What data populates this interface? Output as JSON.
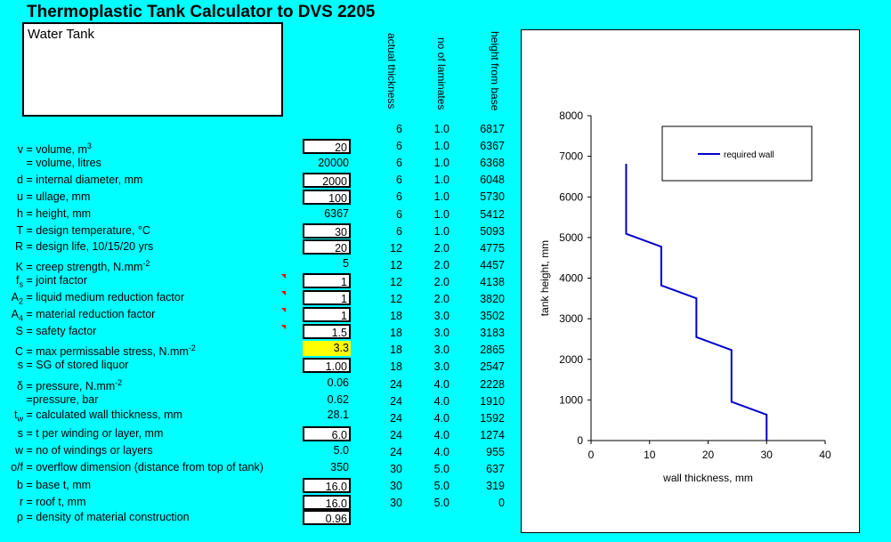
{
  "title": "Thermoplastic Tank Calculator to DVS 2205",
  "notes": "Water Tank",
  "table_headers": [
    "actual thickness",
    "no of laminates",
    "height from base"
  ],
  "rows": [
    {
      "sym": "v",
      "label": "= volume, m",
      "sup": "3",
      "value": "20",
      "style": "input",
      "top": 155
    },
    {
      "sym": "",
      "label": "= volume, litres",
      "sup": "",
      "value": "20000",
      "style": "plain",
      "top": 174
    },
    {
      "sym": "d",
      "label": "= internal diameter, mm",
      "sup": "",
      "value": "2000",
      "style": "input",
      "top": 193
    },
    {
      "sym": "u",
      "label": "= ullage, mm",
      "sup": "",
      "value": "100",
      "style": "input",
      "top": 212
    },
    {
      "sym": "h",
      "label": "= height, mm",
      "sup": "",
      "value": "6367",
      "style": "plain",
      "top": 231
    },
    {
      "sym": "T",
      "label": "= design temperature, °C",
      "sup": "",
      "value": "30",
      "style": "input",
      "top": 250
    },
    {
      "sym": "R",
      "label": "= design life, 10/15/20 yrs",
      "sup": "",
      "value": "20",
      "style": "input",
      "top": 268
    },
    {
      "sym": "K",
      "label": "= creep strength, N.mm",
      "sup": "-2",
      "value": "5",
      "style": "plain",
      "top": 287
    },
    {
      "sym": "f",
      "sub": "s",
      "label": "= joint factor",
      "sup": "",
      "value": "1",
      "style": "input",
      "top": 306
    },
    {
      "sym": "A",
      "sub": "2",
      "label": "= liquid medium reduction factor",
      "sup": "",
      "value": "1",
      "style": "input",
      "top": 325
    },
    {
      "sym": "A",
      "sub": "4",
      "label": "= material reduction factor",
      "sup": "",
      "value": "1",
      "style": "input",
      "top": 344
    },
    {
      "sym": "S",
      "label": "= safety factor",
      "sup": "",
      "value": "1.5",
      "style": "input",
      "top": 363
    },
    {
      "sym": "C",
      "label": "= max permissable stress, N.mm",
      "sup": "-2",
      "value": "3.3",
      "style": "yellow",
      "top": 382
    },
    {
      "sym": "s",
      "label": "= SG of stored liquor",
      "sup": "",
      "value": "1.00",
      "style": "input",
      "top": 401
    },
    {
      "sym": "δ",
      "label": "= pressure, N.mm",
      "sup": "-2",
      "value": "0.06",
      "style": "plain",
      "top": 421
    },
    {
      "sym": "",
      "label": "=pressure, bar",
      "sup": "",
      "value": "0.62",
      "style": "plain",
      "top": 440
    },
    {
      "sym": "t",
      "sub": "w",
      "label": "= calculated wall thickness, mm",
      "sup": "",
      "value": "28.1",
      "style": "plain",
      "top": 457
    },
    {
      "sym": "s",
      "label": "= t per winding or layer, mm",
      "sup": "",
      "value": "6.0",
      "style": "input",
      "top": 478
    },
    {
      "sym": "w",
      "label": "= no of windings or layers",
      "sup": "",
      "value": "5.0",
      "style": "plain",
      "top": 497
    },
    {
      "sym": "o/f",
      "label": "= overflow dimension (distance from top of tank)",
      "sup": "",
      "value": "350",
      "style": "plain",
      "top": 516
    },
    {
      "sym": "b",
      "label": "= base t, mm",
      "sup": "",
      "value": "16.0",
      "style": "input",
      "top": 536
    },
    {
      "sym": "r",
      "label": "= roof t, mm",
      "sup": "",
      "value": "16.0",
      "style": "input",
      "top": 555
    },
    {
      "sym": "ρ",
      "label": "= density of material construction",
      "sup": "",
      "value": "0.96",
      "style": "input",
      "top": 572
    }
  ],
  "table": [
    [
      "6",
      "1.0",
      "6817"
    ],
    [
      "6",
      "1.0",
      "6367"
    ],
    [
      "6",
      "1.0",
      "6368"
    ],
    [
      "6",
      "1.0",
      "6048"
    ],
    [
      "6",
      "1.0",
      "5730"
    ],
    [
      "6",
      "1.0",
      "5412"
    ],
    [
      "6",
      "1.0",
      "5093"
    ],
    [
      "12",
      "2.0",
      "4775"
    ],
    [
      "12",
      "2.0",
      "4457"
    ],
    [
      "12",
      "2.0",
      "4138"
    ],
    [
      "12",
      "2.0",
      "3820"
    ],
    [
      "18",
      "3.0",
      "3502"
    ],
    [
      "18",
      "3.0",
      "3183"
    ],
    [
      "18",
      "3.0",
      "2865"
    ],
    [
      "18",
      "3.0",
      "2547"
    ],
    [
      "24",
      "4.0",
      "2228"
    ],
    [
      "24",
      "4.0",
      "1910"
    ],
    [
      "24",
      "4.0",
      "1592"
    ],
    [
      "24",
      "4.0",
      "1274"
    ],
    [
      "24",
      "4.0",
      "955"
    ],
    [
      "30",
      "5.0",
      "637"
    ],
    [
      "30",
      "5.0",
      "319"
    ],
    [
      "30",
      "5.0",
      "0"
    ]
  ],
  "accent_line": "#0000CC",
  "chart_data": {
    "type": "line",
    "xlabel": "wall thickness, mm",
    "ylabel": "tank height, mm",
    "xlim": [
      0,
      40
    ],
    "ylim": [
      0,
      8000
    ],
    "xticks": [
      0,
      10,
      20,
      30,
      40
    ],
    "yticks": [
      0,
      1000,
      2000,
      3000,
      4000,
      5000,
      6000,
      7000,
      8000
    ],
    "legend": "top-right",
    "grid": false,
    "series": [
      {
        "name": "required wall",
        "x": [
          30,
          30,
          24,
          24,
          18,
          18,
          12,
          12,
          6,
          6
        ],
        "y": [
          0,
          637,
          955,
          2228,
          2547,
          3502,
          3820,
          4775,
          5093,
          6817
        ]
      }
    ]
  }
}
